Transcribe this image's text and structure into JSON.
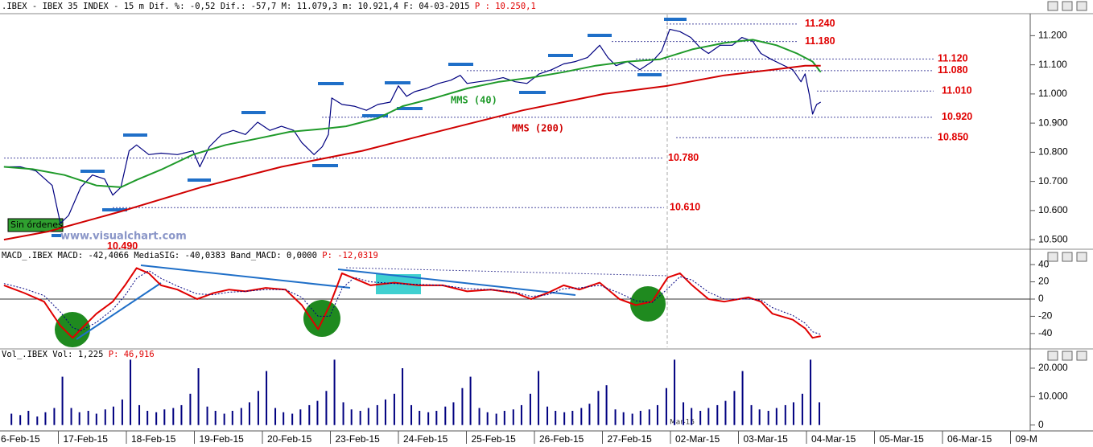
{
  "chart_data": [
    {
      "type": "line",
      "title": ".IBEX - IBEX 35 INDEX -  15 m Dif. %: -0,52 Dif.: -57,7 M: 11.079,3 m: 10.921,4 F: 04-03-2015",
      "title_p": "P : 10.250,1",
      "annotations": [
        "Sin órdenes",
        "www.visualchart.com"
      ],
      "xlim": [
        0.142,
        15.29
      ],
      "ylim": [
        10470,
        11270
      ],
      "yticks": [
        {
          "value": 11200,
          "label": "11.200"
        },
        {
          "value": 11100,
          "label": "11.100"
        },
        {
          "value": 11000,
          "label": "11.000"
        },
        {
          "value": 10900,
          "label": "10.900"
        },
        {
          "value": 10800,
          "label": "10.800"
        },
        {
          "value": 10700,
          "label": "10.700"
        },
        {
          "value": 10600,
          "label": "10.600"
        },
        {
          "value": 10500,
          "label": "10.500"
        }
      ],
      "levels": [
        {
          "value": 11240,
          "label": "11.240"
        },
        {
          "value": 11180,
          "label": "11.180"
        },
        {
          "value": 11120,
          "label": "11.120"
        },
        {
          "value": 11080,
          "label": "11.080"
        },
        {
          "value": 11010,
          "label": "11.010"
        },
        {
          "value": 10920,
          "label": "10.920"
        },
        {
          "value": 10850,
          "label": "10.850"
        },
        {
          "value": 10780,
          "label": "10.780"
        },
        {
          "value": 10610,
          "label": "10.610"
        },
        {
          "value": 10490,
          "label": "10.490"
        }
      ],
      "series": [
        {
          "color": "#000080",
          "x": [
            0.2,
            0.44,
            0.67,
            0.91,
            1.03,
            1.15,
            1.33,
            1.5,
            1.68,
            1.8,
            1.92,
            2.04,
            2.15,
            2.33,
            2.51,
            2.75,
            2.98,
            3.08,
            3.22,
            3.4,
            3.57,
            3.75,
            3.93,
            4.11,
            4.28,
            4.46,
            4.58,
            4.76,
            4.88,
            4.97,
            5.02,
            5.17,
            5.35,
            5.53,
            5.7,
            5.88,
            6.0,
            6.12,
            6.24,
            6.41,
            6.59,
            6.77,
            6.91,
            7.01,
            7.18,
            7.36,
            7.54,
            7.72,
            7.89,
            8.07,
            8.25,
            8.43,
            8.6,
            8.78,
            8.96,
            9.08,
            9.2,
            9.37,
            9.55,
            9.73,
            9.87,
            9.99,
            10.14,
            10.3,
            10.44,
            10.56,
            10.73,
            10.91,
            11.05,
            11.21,
            11.33,
            11.48,
            11.62,
            11.8,
            11.92,
            11.98,
            12.04,
            12.09,
            12.15,
            12.21
          ],
          "values": [
            10750,
            10750,
            10736,
            10686,
            10556,
            10583,
            10680,
            10722,
            10708,
            10653,
            10680,
            10805,
            10825,
            10792,
            10797,
            10792,
            10805,
            10750,
            10819,
            10861,
            10875,
            10861,
            10903,
            10875,
            10889,
            10875,
            10833,
            10792,
            10819,
            10861,
            10986,
            10964,
            10958,
            10944,
            10964,
            10972,
            11028,
            10992,
            11008,
            11019,
            11036,
            11047,
            11064,
            11036,
            11042,
            11047,
            11056,
            11042,
            11036,
            11069,
            11083,
            11103,
            11111,
            11125,
            11167,
            11125,
            11097,
            11111,
            11083,
            11111,
            11147,
            11222,
            11214,
            11194,
            11158,
            11139,
            11167,
            11167,
            11194,
            11181,
            11139,
            11119,
            11103,
            11083,
            11042,
            11069,
            11000,
            10931,
            10964,
            10972
          ]
        },
        {
          "name": "MMS (40)",
          "color": "#1f9a2a",
          "x": [
            0.2,
            0.62,
            1.09,
            1.56,
            1.92,
            2.15,
            2.51,
            2.98,
            3.46,
            3.93,
            4.4,
            4.88,
            5.23,
            5.7,
            6.06,
            6.53,
            7.01,
            7.48,
            7.95,
            8.43,
            8.9,
            9.37,
            9.85,
            10.32,
            10.79,
            11.21,
            11.56,
            11.86,
            12.09,
            12.21
          ],
          "values": [
            10750,
            10742,
            10722,
            10686,
            10680,
            10705,
            10740,
            10792,
            10825,
            10847,
            10870,
            10880,
            10889,
            10917,
            10958,
            10986,
            11019,
            11042,
            11056,
            11075,
            11097,
            11111,
            11119,
            11153,
            11175,
            11186,
            11167,
            11139,
            11111,
            11075
          ]
        },
        {
          "name": "MMS (200)",
          "color": "#d00000",
          "x": [
            0.2,
            0.85,
            1.92,
            3.1,
            4.28,
            5.47,
            6.65,
            7.83,
            9.02,
            9.96,
            10.79,
            11.5,
            11.98,
            12.21
          ],
          "values": [
            10500,
            10528,
            10597,
            10680,
            10750,
            10805,
            10875,
            10944,
            11000,
            11028,
            11064,
            11083,
            11097,
            11097
          ]
        }
      ]
    },
    {
      "type": "line",
      "title": "MACD_.IBEX MACD: -42,4066 MediaSIG: -40,0383 Band_MACD: 0,0000",
      "title_p": "P: -12,0319",
      "xlim": [
        0.142,
        15.29
      ],
      "ylim": [
        -56,
        56
      ],
      "yticks": [
        40,
        20,
        0,
        -20,
        -40
      ],
      "zero_line": true,
      "series": [
        {
          "color": "#e00000",
          "x": [
            0.2,
            0.5,
            0.79,
            1.03,
            1.21,
            1.33,
            1.56,
            1.8,
            1.98,
            2.15,
            2.33,
            2.51,
            2.75,
            3.04,
            3.28,
            3.51,
            3.75,
            4.05,
            4.34,
            4.58,
            4.82,
            4.99,
            5.17,
            5.35,
            5.59,
            5.94,
            6.3,
            6.65,
            7.01,
            7.36,
            7.72,
            7.95,
            8.19,
            8.43,
            8.66,
            8.96,
            9.25,
            9.49,
            9.73,
            9.96,
            10.14,
            10.32,
            10.56,
            10.79,
            11.15,
            11.33,
            11.5,
            11.8,
            11.98,
            12.09,
            12.21
          ],
          "values": [
            16,
            7,
            -3,
            -31,
            -45,
            -35,
            -17,
            -3,
            16,
            36,
            30,
            16,
            11,
            0,
            7,
            11,
            9,
            13,
            11,
            -7,
            -35,
            -7,
            30,
            24,
            16,
            19,
            16,
            16,
            9,
            11,
            7,
            0,
            7,
            16,
            11,
            19,
            0,
            -7,
            -3,
            25,
            30,
            16,
            0,
            -3,
            2,
            -3,
            -17,
            -24,
            -34,
            -45,
            -43
          ]
        },
        {
          "color": "#000080",
          "dashed": true,
          "x": [
            0.2,
            0.5,
            0.79,
            1.03,
            1.21,
            1.33,
            1.56,
            1.8,
            1.98,
            2.15,
            2.33,
            2.51,
            2.75,
            3.04,
            3.28,
            3.51,
            3.75,
            4.05,
            4.34,
            4.58,
            4.82,
            4.99,
            5.17,
            5.35,
            5.59,
            5.94,
            6.3,
            6.65,
            7.01,
            7.36,
            7.72,
            7.95,
            8.19,
            8.43,
            8.66,
            8.96,
            9.25,
            9.49,
            9.73,
            9.96,
            10.14,
            10.32,
            10.56,
            10.79,
            11.15,
            11.33,
            11.5,
            11.8,
            11.98,
            12.09,
            12.21
          ],
          "values": [
            18,
            12,
            4,
            -15,
            -33,
            -37,
            -27,
            -12,
            4,
            24,
            33,
            24,
            15,
            6,
            5,
            8,
            9,
            11,
            11,
            2,
            -20,
            -20,
            12,
            25,
            20,
            18,
            17,
            16,
            12,
            11,
            8,
            3,
            5,
            12,
            13,
            16,
            7,
            -2,
            -4,
            12,
            26,
            22,
            8,
            0,
            0,
            -1,
            -10,
            -19,
            -28,
            -38,
            -41
          ]
        }
      ]
    },
    {
      "type": "bar",
      "title": "Vol_.IBEX Vol: 1,225",
      "title_p": "P: 46,916",
      "annotations": [
        "Mar-15"
      ],
      "color": "#000080",
      "xlim": [
        0.142,
        15.29
      ],
      "ylim": [
        -1500,
        23100
      ],
      "yticks": [
        {
          "value": 20000,
          "label": "20.000"
        },
        {
          "value": 10000,
          "label": "10.000"
        },
        0
      ],
      "xticks": [
        {
          "value": 0,
          "label": "6-Feb-15"
        },
        {
          "value": 1,
          "label": "17-Feb-15"
        },
        {
          "value": 2,
          "label": "18-Feb-15"
        },
        {
          "value": 3,
          "label": "19-Feb-15"
        },
        {
          "value": 4,
          "label": "20-Feb-15"
        },
        {
          "value": 5,
          "label": "23-Feb-15"
        },
        {
          "value": 6,
          "label": "24-Feb-15"
        },
        {
          "value": 7,
          "label": "25-Feb-15"
        },
        {
          "value": 8,
          "label": "26-Feb-15"
        },
        {
          "value": 9,
          "label": "27-Feb-15"
        },
        {
          "value": 10,
          "label": "02-Mar-15"
        },
        {
          "value": 11,
          "label": "03-Mar-15"
        },
        {
          "value": 12,
          "label": "04-Mar-15"
        },
        {
          "value": 13,
          "label": "05-Mar-15"
        },
        {
          "value": 14,
          "label": "06-Mar-15"
        },
        {
          "value": 15,
          "label": "09-M"
        }
      ],
      "x": [
        0.31,
        0.44,
        0.56,
        0.69,
        0.81,
        0.94,
        1.06,
        1.19,
        1.31,
        1.44,
        1.56,
        1.69,
        1.81,
        1.94,
        2.06,
        2.19,
        2.31,
        2.44,
        2.56,
        2.69,
        2.81,
        2.94,
        3.06,
        3.19,
        3.31,
        3.44,
        3.56,
        3.69,
        3.81,
        3.94,
        4.06,
        4.19,
        4.31,
        4.44,
        4.56,
        4.69,
        4.81,
        4.94,
        5.06,
        5.19,
        5.31,
        5.44,
        5.56,
        5.69,
        5.81,
        5.94,
        6.06,
        6.19,
        6.31,
        6.44,
        6.56,
        6.69,
        6.81,
        6.94,
        7.06,
        7.19,
        7.31,
        7.44,
        7.56,
        7.69,
        7.81,
        7.94,
        8.06,
        8.19,
        8.31,
        8.44,
        8.56,
        8.69,
        8.81,
        8.94,
        9.06,
        9.19,
        9.31,
        9.44,
        9.56,
        9.69,
        9.81,
        9.94,
        10.06,
        10.19,
        10.31,
        10.44,
        10.56,
        10.69,
        10.81,
        10.94,
        11.06,
        11.19,
        11.31,
        11.44,
        11.56,
        11.69,
        11.81,
        11.94,
        12.06,
        12.19
      ],
      "values": [
        4000,
        3500,
        5000,
        3000,
        4500,
        6000,
        17000,
        6000,
        4500,
        5000,
        4000,
        5500,
        6500,
        9000,
        23000,
        7000,
        5000,
        4500,
        5500,
        6000,
        7000,
        11000,
        20000,
        6500,
        5000,
        4000,
        5000,
        6000,
        8000,
        12000,
        19000,
        6000,
        4500,
        4000,
        5500,
        7000,
        8500,
        12000,
        23000,
        8000,
        5500,
        5000,
        6000,
        7000,
        9000,
        11000,
        20000,
        7000,
        5000,
        4500,
        5000,
        6500,
        8000,
        13000,
        17000,
        6000,
        4500,
        4000,
        5000,
        5500,
        7000,
        11000,
        19000,
        6500,
        5000,
        4500,
        5000,
        6000,
        7500,
        12000,
        14000,
        5500,
        4500,
        4000,
        5000,
        5500,
        7000,
        13000,
        23000,
        8000,
        6000,
        5000,
        6000,
        7000,
        8500,
        12000,
        19000,
        7000,
        5500,
        5000,
        6000,
        7000,
        8000,
        11000,
        23000,
        8000
      ]
    }
  ]
}
